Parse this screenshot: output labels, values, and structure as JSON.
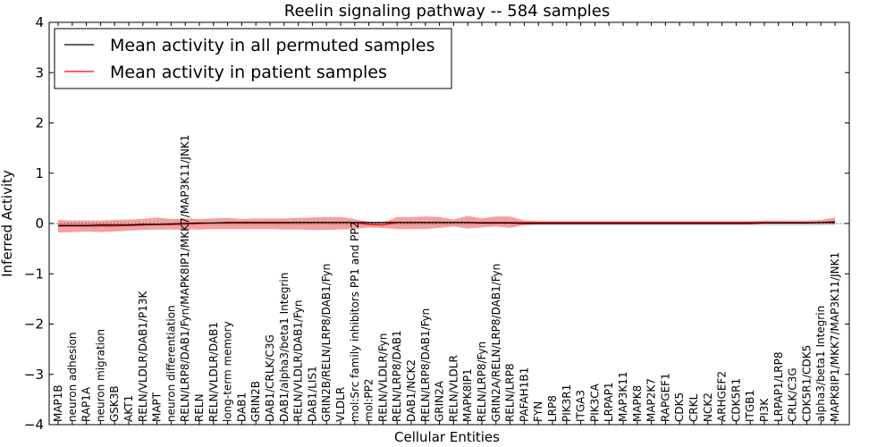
{
  "chart_data": {
    "type": "line",
    "title": "Reelin signaling pathway -- 584 samples",
    "xlabel": "Cellular Entities",
    "ylabel": "Inferred Activity",
    "ylim": [
      -4,
      4
    ],
    "yticks": [
      -4,
      -3,
      -2,
      -1,
      0,
      1,
      2,
      3,
      4
    ],
    "ytick_labels": [
      "−4",
      "−3",
      "−2",
      "−1",
      "0",
      "1",
      "2",
      "3",
      "4"
    ],
    "grid": false,
    "legend_position": "top-left",
    "colors": {
      "permuted_line": "#000000",
      "patient_line": "#ff0000",
      "patient_band": "#f08080",
      "permuted_band": "#c8c8d2",
      "zero_line": "#555555"
    },
    "categories": [
      "MAP1B",
      "neuron adhesion",
      "RAP1A",
      "neuron migration",
      "GSK3B",
      "AKT1",
      "RELN/VLDLR/DAB1/P13K",
      "MAPT",
      "neuron differentiation",
      "RELN/LRP8/DAB1/Fyn/MAPK8IP1/MKK7/MAP3K11/JNK1",
      "RELN",
      "RELN/VLDLR/DAB1",
      "long-term memory",
      "DAB1",
      "GRIN2B",
      "DAB1/CRLK/C3G",
      "DAB1/alpha3/beta1 Integrin",
      "RELN/VLDLR/DAB1/Fyn",
      "DAB1/LIS1",
      "GRIN2B/RELN/LRP8/DAB1/Fyn",
      "VLDLR",
      "mol:Src family inhibitors PP1 and PP2",
      "mol:PP2",
      "RELN/VLDLR/Fyn",
      "RELN/LRP8/DAB1",
      "DAB1/NCK2",
      "RELN/LRP8/DAB1/Fyn",
      "GRIN2A",
      "RELN/VLDLR",
      "MAPK8IP1",
      "RELN/LRP8/Fyn",
      "GRIN2A/RELN/LRP8/DAB1/Fyn",
      "RELN/LRP8",
      "PAFAH1B1",
      "FYN",
      "LRP8",
      "PIK3R1",
      "ITGA3",
      "PIK3CA",
      "LRPAP1",
      "MAP3K11",
      "MAPK8",
      "MAP2K7",
      "RAPGEF1",
      "CDK5",
      "CRKL",
      "NCK2",
      "ARHGEF2",
      "CDK5R1",
      "ITGB1",
      "PI3K",
      "LRPAP1/LRP8",
      "CRLK/C3G",
      "CDK5R1/CDK5",
      "alpha3/beta1 Integrin",
      "MAPK8IP1/MKK7/MAP3K11/JNK1"
    ],
    "series": [
      {
        "name": "Mean activity in all permuted samples",
        "color": "#000000",
        "values": [
          -0.04,
          -0.04,
          -0.04,
          -0.03,
          -0.03,
          -0.03,
          -0.02,
          -0.02,
          -0.01,
          0.0,
          0.01,
          0.01,
          0.02,
          0.02,
          0.02,
          0.02,
          0.02,
          0.02,
          0.02,
          0.02,
          0.02,
          0.02,
          0.02,
          0.02,
          0.02,
          0.02,
          0.02,
          0.02,
          0.02,
          0.02,
          0.01,
          0.01,
          0.01,
          0.0,
          0.0,
          0.0,
          0.0,
          0.0,
          0.0,
          0.0,
          0.0,
          0.0,
          0.0,
          0.0,
          0.0,
          0.0,
          0.0,
          0.0,
          0.0,
          0.0,
          0.01,
          0.01,
          0.01,
          0.01,
          0.02,
          0.02
        ],
        "band_low": [
          -0.07,
          -0.07,
          -0.07,
          -0.06,
          -0.06,
          -0.06,
          -0.05,
          -0.05,
          -0.04,
          -0.04,
          -0.04,
          -0.04,
          -0.04,
          -0.04,
          -0.04,
          -0.04,
          -0.04,
          -0.04,
          -0.04,
          -0.04,
          -0.04,
          -0.04,
          -0.04,
          -0.04,
          -0.04,
          -0.04,
          -0.04,
          -0.04,
          -0.04,
          -0.04,
          -0.04,
          -0.04,
          -0.04,
          -0.04,
          -0.04,
          -0.04,
          -0.04,
          -0.04,
          -0.04,
          -0.04,
          -0.04,
          -0.04,
          -0.04,
          -0.04,
          -0.04,
          -0.04,
          -0.04,
          -0.04,
          -0.04,
          -0.04,
          -0.04,
          -0.04,
          -0.04,
          -0.04,
          -0.04,
          -0.03
        ],
        "band_high": [
          0.02,
          0.02,
          0.02,
          0.02,
          0.02,
          0.02,
          0.02,
          0.02,
          0.03,
          0.03,
          0.03,
          0.03,
          0.03,
          0.03,
          0.03,
          0.03,
          0.03,
          0.03,
          0.03,
          0.03,
          0.03,
          0.03,
          0.03,
          0.03,
          0.03,
          0.03,
          0.03,
          0.03,
          0.03,
          0.03,
          0.03,
          0.03,
          0.03,
          0.03,
          0.03,
          0.03,
          0.03,
          0.03,
          0.03,
          0.03,
          0.03,
          0.03,
          0.03,
          0.03,
          0.03,
          0.03,
          0.03,
          0.03,
          0.03,
          0.03,
          0.03,
          0.03,
          0.03,
          0.03,
          0.04,
          0.04
        ]
      },
      {
        "name": "Mean activity in patient samples",
        "color": "#ff0000",
        "values": [
          -0.05,
          -0.05,
          -0.05,
          -0.05,
          -0.05,
          -0.04,
          -0.03,
          -0.02,
          -0.02,
          -0.01,
          0.0,
          0.01,
          0.01,
          0.01,
          0.01,
          0.01,
          0.01,
          0.02,
          0.02,
          0.02,
          0.02,
          0.02,
          -0.02,
          -0.03,
          0.02,
          0.02,
          0.02,
          0.02,
          0.02,
          0.02,
          0.02,
          0.02,
          0.02,
          0.02,
          0.02,
          0.02,
          0.02,
          0.02,
          0.02,
          0.02,
          0.02,
          0.02,
          0.02,
          0.02,
          0.02,
          0.02,
          0.02,
          0.02,
          0.02,
          0.02,
          0.02,
          0.02,
          0.02,
          0.02,
          0.02,
          0.04
        ],
        "band_low": [
          -0.18,
          -0.17,
          -0.16,
          -0.17,
          -0.16,
          -0.14,
          -0.13,
          -0.12,
          -0.12,
          -0.12,
          -0.12,
          -0.11,
          -0.11,
          -0.11,
          -0.11,
          -0.11,
          -0.12,
          -0.12,
          -0.13,
          -0.13,
          -0.12,
          -0.11,
          -0.08,
          -0.09,
          -0.11,
          -0.11,
          -0.11,
          -0.09,
          -0.06,
          -0.1,
          -0.08,
          -0.06,
          -0.09,
          -0.03,
          -0.01,
          -0.01,
          -0.01,
          -0.01,
          -0.01,
          -0.01,
          -0.01,
          -0.01,
          -0.01,
          -0.01,
          -0.01,
          -0.01,
          -0.01,
          -0.01,
          -0.01,
          -0.01,
          -0.01,
          -0.01,
          -0.01,
          -0.01,
          -0.01,
          -0.01
        ],
        "band_high": [
          0.07,
          0.06,
          0.06,
          0.06,
          0.07,
          0.08,
          0.09,
          0.12,
          0.09,
          0.1,
          0.09,
          0.1,
          0.11,
          0.09,
          0.1,
          0.1,
          0.1,
          0.11,
          0.12,
          0.13,
          0.13,
          0.09,
          0.03,
          0.02,
          0.13,
          0.13,
          0.14,
          0.13,
          0.08,
          0.15,
          0.1,
          0.14,
          0.14,
          0.06,
          0.05,
          0.05,
          0.05,
          0.05,
          0.05,
          0.05,
          0.05,
          0.05,
          0.05,
          0.05,
          0.05,
          0.05,
          0.05,
          0.05,
          0.05,
          0.05,
          0.06,
          0.06,
          0.06,
          0.06,
          0.07,
          0.12
        ]
      }
    ]
  }
}
